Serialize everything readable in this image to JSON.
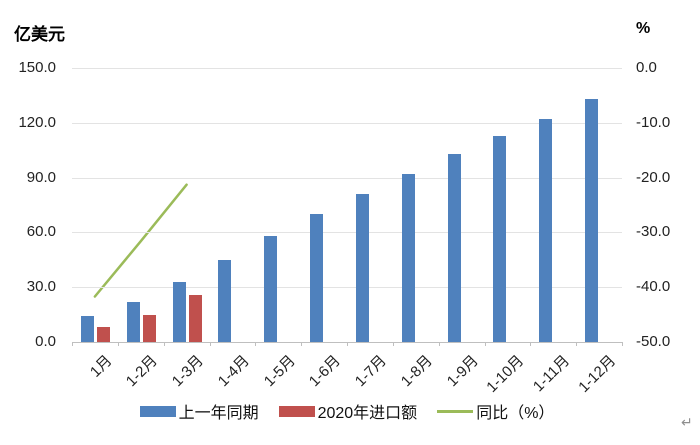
{
  "page": {
    "return_mark": "↵"
  },
  "chart": {
    "left_axis_title": "亿美元",
    "right_axis_title": "%",
    "left_ticks": [
      "150.0",
      "120.0",
      "90.0",
      "60.0",
      "30.0",
      "0.0"
    ],
    "right_ticks": [
      "0.0",
      "-10.0",
      "-20.0",
      "-30.0",
      "-40.0",
      "-50.0"
    ]
  },
  "chart_data": {
    "type": "combo",
    "categories": [
      "1月",
      "1-2月",
      "1-3月",
      "1-4月",
      "1-5月",
      "1-6月",
      "1-7月",
      "1-8月",
      "1-9月",
      "1-10月",
      "1-11月",
      "1-12月"
    ],
    "series": [
      {
        "name": "上一年同期",
        "type": "bar",
        "axis": "left",
        "color": "#4F81BD",
        "values": [
          14,
          22,
          33,
          45,
          58,
          70,
          81,
          92,
          103,
          113,
          122,
          133
        ]
      },
      {
        "name": "2020年进口额",
        "type": "bar",
        "axis": "left",
        "color": "#C0504D",
        "values": [
          8,
          15,
          26,
          null,
          null,
          null,
          null,
          null,
          null,
          null,
          null,
          null
        ]
      },
      {
        "name": "同比（%）",
        "type": "line",
        "axis": "right",
        "color": "#9BBB59",
        "values": [
          -41.7,
          -31.6,
          -21.3,
          null,
          null,
          null,
          null,
          null,
          null,
          null,
          null,
          null
        ]
      }
    ],
    "left_axis": {
      "title": "亿美元",
      "min": 0,
      "max": 150,
      "tick_step": 30
    },
    "right_axis": {
      "title": "%",
      "min": -50,
      "max": 0,
      "tick_step": 10
    },
    "grid": true,
    "legend_position": "bottom",
    "gridline_color": "#e3e3e3",
    "axisline_color": "#bfbfbf"
  }
}
